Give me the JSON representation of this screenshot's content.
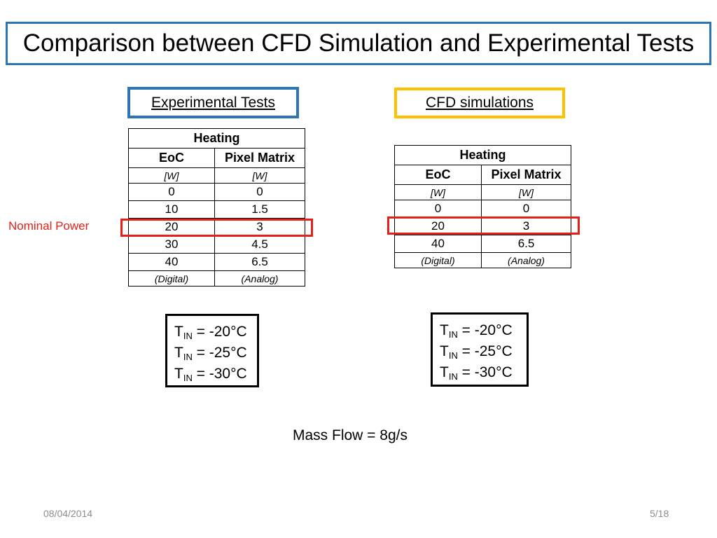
{
  "title": "Comparison between CFD Simulation and Experimental Tests",
  "experimental": {
    "heading": "Experimental Tests",
    "table": {
      "group_header": "Heating",
      "columns": [
        "EoC",
        "Pixel Matrix"
      ],
      "units": [
        "[W]",
        "[W]"
      ],
      "rows": [
        [
          "0",
          "0"
        ],
        [
          "10",
          "1.5"
        ],
        [
          "20",
          "3"
        ],
        [
          "30",
          "4.5"
        ],
        [
          "40",
          "6.5"
        ]
      ],
      "footer": [
        "(Digital)",
        "(Analog)"
      ]
    },
    "temps": [
      {
        "symbol": "T",
        "sub": "IN",
        "value": " = -20°C"
      },
      {
        "symbol": "T",
        "sub": "IN",
        "value": " = -25°C"
      },
      {
        "symbol": "T",
        "sub": "IN",
        "value": " = -30°C"
      }
    ]
  },
  "cfd": {
    "heading": "CFD simulations",
    "table": {
      "group_header": "Heating",
      "columns": [
        "EoC",
        "Pixel Matrix"
      ],
      "units": [
        "[W]",
        "[W]"
      ],
      "rows": [
        [
          "0",
          "0"
        ],
        [
          "20",
          "3"
        ],
        [
          "40",
          "6.5"
        ]
      ],
      "footer": [
        "(Digital)",
        "(Analog)"
      ]
    },
    "temps": [
      {
        "symbol": "T",
        "sub": "IN",
        "value": " = -20°C"
      },
      {
        "symbol": "T",
        "sub": "IN",
        "value": " = -25°C"
      },
      {
        "symbol": "T",
        "sub": "IN",
        "value": " = -30°C"
      }
    ]
  },
  "nominal_label": "Nominal Power",
  "mass_flow": "Mass Flow = 8g/s",
  "footer": {
    "date": "08/04/2014",
    "page": "5/18"
  },
  "colors": {
    "blue": "#2e75b6",
    "gold": "#ffc000",
    "red": "#e32119",
    "footer_gray": "#8c8c8c"
  }
}
